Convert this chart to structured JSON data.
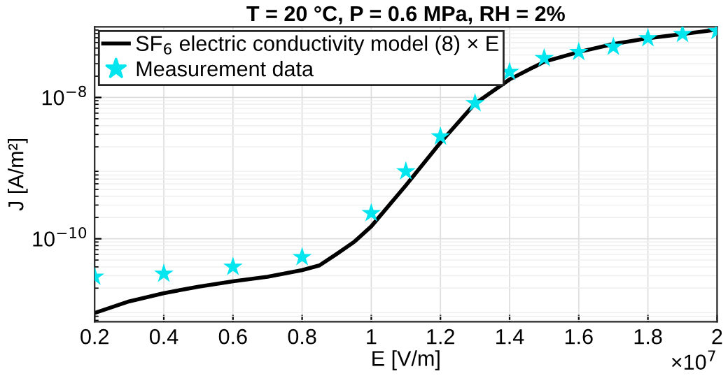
{
  "chart_data": {
    "type": "line",
    "title": "T = 20 °C, P = 0.6 MPa, RH = 2%",
    "xlabel": "E [V/m]",
    "ylabel": "J [A/m²]",
    "log": "y",
    "grid": true,
    "legend": "top left",
    "xlim": [
      0.2,
      2
    ],
    "xticks": [
      0.2,
      0.4,
      0.6,
      0.8,
      1,
      1.2,
      1.4,
      1.6,
      1.8,
      2
    ],
    "ylim": [
      6.7e-12,
      1e-07
    ],
    "yticks": [
      {
        "value": 1e-10,
        "label": "10$^{−10}$"
      },
      {
        "value": 1e-08,
        "label": "10$^{−8}$"
      }
    ],
    "annotations": [
      "×10$^{7}$"
    ],
    "series": [
      {
        "name": "SF$_{6}$ electric conductivity model (8) × E",
        "color": "#000000",
        "line_style": "solid",
        "marker": "none",
        "x": [
          0.2,
          0.3,
          0.4,
          0.5,
          0.6,
          0.7,
          0.8,
          0.85,
          0.9,
          0.95,
          1.0,
          1.1,
          1.2,
          1.3,
          1.4,
          1.5,
          1.6,
          1.7,
          1.8,
          1.9,
          2.0
        ],
        "values": [
          8.9e-12,
          1.3e-11,
          1.7e-11,
          2.1e-11,
          2.5e-11,
          2.9e-11,
          3.6e-11,
          4.2e-11,
          6.1e-11,
          9e-11,
          1.5e-10,
          5.7e-10,
          2.3e-09,
          8.2e-09,
          1.8e-08,
          3.2e-08,
          4.4e-08,
          5.7e-08,
          6.9e-08,
          7.9e-08,
          9.1e-08
        ]
      },
      {
        "name": "Measurement data",
        "type": "scatter",
        "color": "#00e5ee",
        "marker": "star",
        "x": [
          0.2,
          0.4,
          0.6,
          0.8,
          1.0,
          1.1,
          1.2,
          1.3,
          1.4,
          1.5,
          1.6,
          1.7,
          1.8,
          1.9,
          2.0
        ],
        "values": [
          2.9e-11,
          3.2e-11,
          4e-11,
          5.5e-11,
          2.3e-10,
          9e-10,
          2.8e-09,
          8.3e-09,
          2.3e-08,
          3.6e-08,
          4.4e-08,
          5.2e-08,
          6.9e-08,
          7.9e-08,
          8.7e-08
        ]
      }
    ]
  }
}
